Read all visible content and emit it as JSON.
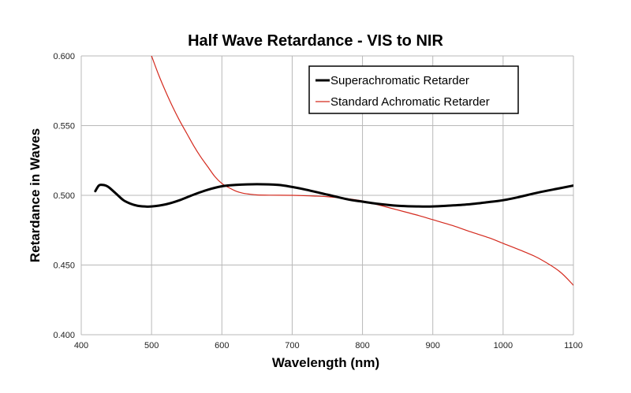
{
  "chart_data": {
    "type": "line",
    "title": "Half Wave Retardance - VIS to NIR",
    "xlabel": "Wavelength (nm)",
    "ylabel": "Retardance in Waves",
    "xlim": [
      400,
      1100
    ],
    "ylim": [
      0.4,
      0.6
    ],
    "x_ticks": [
      "400",
      "500",
      "600",
      "700",
      "800",
      "900",
      "1000",
      "1100"
    ],
    "y_ticks": [
      "0.400",
      "0.450",
      "0.500",
      "0.550",
      "0.600"
    ],
    "grid": true,
    "legend_position": "top-right",
    "series": [
      {
        "name": "Superachromatic Retarder",
        "color": "#000000",
        "x": [
          420,
          425,
          430,
          435,
          440,
          450,
          460,
          470,
          480,
          490,
          500,
          520,
          540,
          560,
          580,
          600,
          620,
          650,
          680,
          700,
          720,
          750,
          780,
          800,
          820,
          850,
          880,
          900,
          920,
          950,
          980,
          1000,
          1020,
          1050,
          1080,
          1100
        ],
        "y": [
          0.503,
          0.507,
          0.5075,
          0.507,
          0.5055,
          0.501,
          0.4965,
          0.494,
          0.4925,
          0.492,
          0.492,
          0.4935,
          0.4965,
          0.5005,
          0.504,
          0.5065,
          0.5075,
          0.508,
          0.5075,
          0.506,
          0.504,
          0.5005,
          0.497,
          0.4955,
          0.494,
          0.4925,
          0.492,
          0.492,
          0.4925,
          0.4935,
          0.4952,
          0.4965,
          0.4985,
          0.502,
          0.505,
          0.507
        ]
      },
      {
        "name": "Standard Achromatic Retarder",
        "color": "#d42a1e",
        "x": [
          500,
          510,
          520,
          530,
          540,
          550,
          560,
          570,
          580,
          590,
          600,
          610,
          620,
          630,
          640,
          650,
          670,
          700,
          730,
          750,
          780,
          800,
          820,
          850,
          880,
          900,
          930,
          950,
          980,
          1000,
          1030,
          1050,
          1080,
          1100
        ],
        "y": [
          0.6,
          0.5865,
          0.5745,
          0.5635,
          0.5535,
          0.5445,
          0.5355,
          0.5275,
          0.5205,
          0.5135,
          0.5085,
          0.5055,
          0.503,
          0.5015,
          0.5008,
          0.5003,
          0.5001,
          0.5,
          0.4995,
          0.499,
          0.4975,
          0.496,
          0.4935,
          0.4895,
          0.4855,
          0.4825,
          0.478,
          0.4745,
          0.4695,
          0.4655,
          0.4595,
          0.455,
          0.4455,
          0.4355
        ]
      }
    ]
  }
}
